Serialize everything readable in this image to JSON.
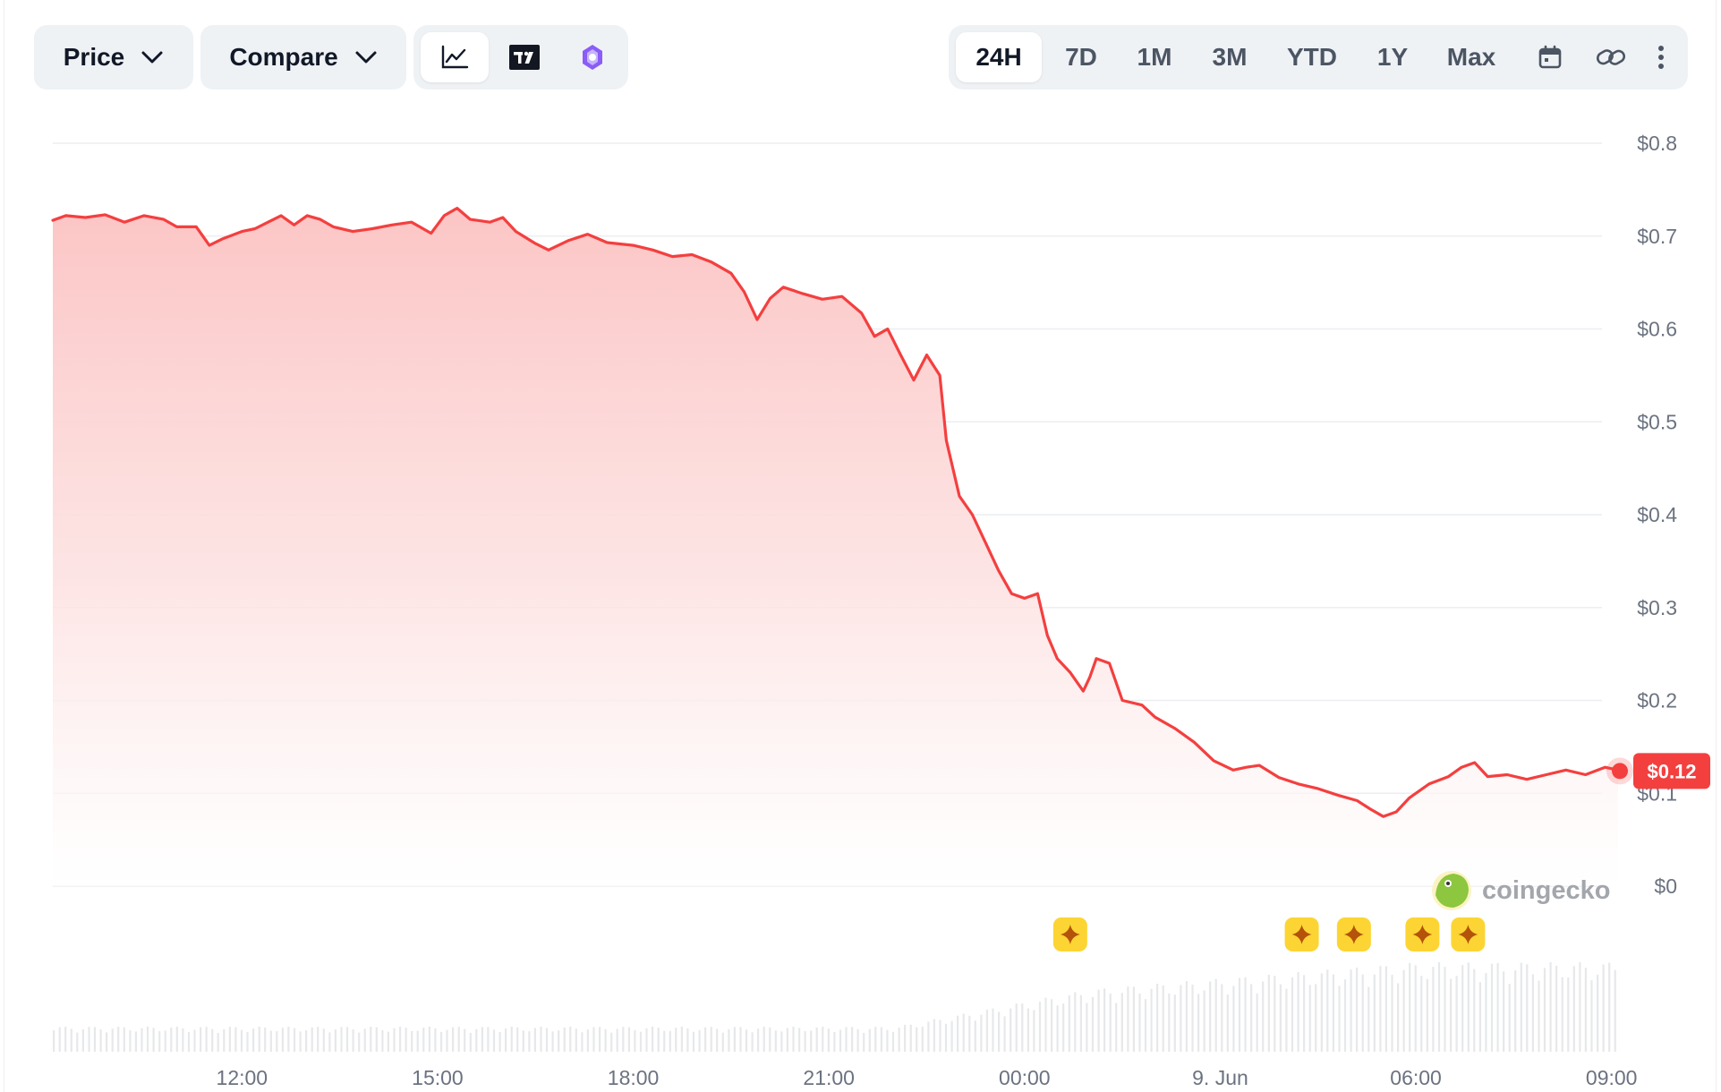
{
  "toolbar": {
    "price_label": "Price",
    "compare_label": "Compare",
    "chart_modes": [
      {
        "name": "line-chart",
        "icon": "line-chart-icon",
        "active": true
      },
      {
        "name": "tradingview",
        "icon": "tradingview-icon",
        "active": false
      },
      {
        "name": "ai-insights",
        "icon": "ai-insights-icon",
        "active": false
      }
    ],
    "ranges": [
      "24H",
      "7D",
      "1M",
      "3M",
      "YTD",
      "1Y",
      "Max"
    ],
    "active_range": "24H",
    "calendar_icon": "calendar-icon",
    "link_icon": "link-icon",
    "more_icon": "more-vertical-icon"
  },
  "watermark": {
    "text": "coingecko",
    "icon": "coingecko-logo-icon"
  },
  "colors": {
    "line": "#f43f3f",
    "fill_top": "#fcc5c5",
    "grid": "#eceef1",
    "badge": "#f43f3f",
    "event_marker": "#fcd534",
    "volume": "#e6e8eb"
  },
  "chart_data": {
    "type": "area",
    "title": "",
    "xlabel": "",
    "ylabel": "",
    "y_ticks": [
      "$0.8",
      "$0.7",
      "$0.6",
      "$0.5",
      "$0.4",
      "$0.3",
      "$0.2",
      "$0.1",
      "$0"
    ],
    "x_ticks": [
      "12:00",
      "15:00",
      "18:00",
      "21:00",
      "00:00",
      "9. Jun",
      "06:00",
      "09:00"
    ],
    "ylim": [
      0,
      0.8
    ],
    "xlim_hours": [
      9.1,
      33.1
    ],
    "current_price_label": "$0.12",
    "current_price": 0.124,
    "grid": true,
    "series": [
      {
        "values_time_price": [
          [
            9.1,
            0.717
          ],
          [
            9.3,
            0.722
          ],
          [
            9.6,
            0.72
          ],
          [
            9.9,
            0.723
          ],
          [
            10.2,
            0.715
          ],
          [
            10.5,
            0.722
          ],
          [
            10.8,
            0.718
          ],
          [
            11.0,
            0.71
          ],
          [
            11.3,
            0.71
          ],
          [
            11.5,
            0.69
          ],
          [
            11.7,
            0.697
          ],
          [
            12.0,
            0.705
          ],
          [
            12.2,
            0.708
          ],
          [
            12.4,
            0.715
          ],
          [
            12.6,
            0.722
          ],
          [
            12.8,
            0.712
          ],
          [
            13.0,
            0.722
          ],
          [
            13.2,
            0.718
          ],
          [
            13.4,
            0.71
          ],
          [
            13.7,
            0.705
          ],
          [
            14.0,
            0.708
          ],
          [
            14.3,
            0.712
          ],
          [
            14.6,
            0.715
          ],
          [
            14.9,
            0.703
          ],
          [
            15.1,
            0.722
          ],
          [
            15.3,
            0.73
          ],
          [
            15.5,
            0.718
          ],
          [
            15.8,
            0.715
          ],
          [
            16.0,
            0.72
          ],
          [
            16.2,
            0.705
          ],
          [
            16.5,
            0.692
          ],
          [
            16.7,
            0.685
          ],
          [
            17.0,
            0.695
          ],
          [
            17.3,
            0.702
          ],
          [
            17.6,
            0.693
          ],
          [
            18.0,
            0.69
          ],
          [
            18.3,
            0.685
          ],
          [
            18.6,
            0.678
          ],
          [
            18.9,
            0.68
          ],
          [
            19.2,
            0.672
          ],
          [
            19.5,
            0.66
          ],
          [
            19.7,
            0.64
          ],
          [
            19.9,
            0.61
          ],
          [
            20.1,
            0.633
          ],
          [
            20.3,
            0.645
          ],
          [
            20.6,
            0.638
          ],
          [
            20.9,
            0.632
          ],
          [
            21.2,
            0.635
          ],
          [
            21.5,
            0.617
          ],
          [
            21.7,
            0.592
          ],
          [
            21.9,
            0.6
          ],
          [
            22.1,
            0.572
          ],
          [
            22.3,
            0.545
          ],
          [
            22.5,
            0.572
          ],
          [
            22.7,
            0.55
          ],
          [
            22.8,
            0.48
          ],
          [
            23.0,
            0.42
          ],
          [
            23.2,
            0.4
          ],
          [
            23.4,
            0.37
          ],
          [
            23.6,
            0.34
          ],
          [
            23.8,
            0.315
          ],
          [
            24.0,
            0.31
          ],
          [
            24.2,
            0.315
          ],
          [
            24.35,
            0.27
          ],
          [
            24.5,
            0.245
          ],
          [
            24.7,
            0.23
          ],
          [
            24.9,
            0.21
          ],
          [
            25.0,
            0.225
          ],
          [
            25.1,
            0.245
          ],
          [
            25.3,
            0.24
          ],
          [
            25.5,
            0.2
          ],
          [
            25.8,
            0.195
          ],
          [
            26.0,
            0.182
          ],
          [
            26.3,
            0.17
          ],
          [
            26.6,
            0.155
          ],
          [
            26.9,
            0.135
          ],
          [
            27.2,
            0.125
          ],
          [
            27.4,
            0.128
          ],
          [
            27.6,
            0.13
          ],
          [
            27.9,
            0.117
          ],
          [
            28.2,
            0.11
          ],
          [
            28.5,
            0.105
          ],
          [
            28.8,
            0.098
          ],
          [
            29.1,
            0.092
          ],
          [
            29.3,
            0.083
          ],
          [
            29.5,
            0.075
          ],
          [
            29.7,
            0.08
          ],
          [
            29.9,
            0.095
          ],
          [
            30.2,
            0.11
          ],
          [
            30.5,
            0.118
          ],
          [
            30.7,
            0.128
          ],
          [
            30.9,
            0.133
          ],
          [
            31.1,
            0.118
          ],
          [
            31.4,
            0.12
          ],
          [
            31.7,
            0.115
          ],
          [
            32.0,
            0.12
          ],
          [
            32.3,
            0.125
          ],
          [
            32.6,
            0.12
          ],
          [
            32.9,
            0.128
          ],
          [
            33.1,
            0.125
          ]
        ]
      }
    ],
    "event_markers_hours": [
      24.7,
      28.25,
      29.05,
      30.1,
      30.8
    ]
  }
}
